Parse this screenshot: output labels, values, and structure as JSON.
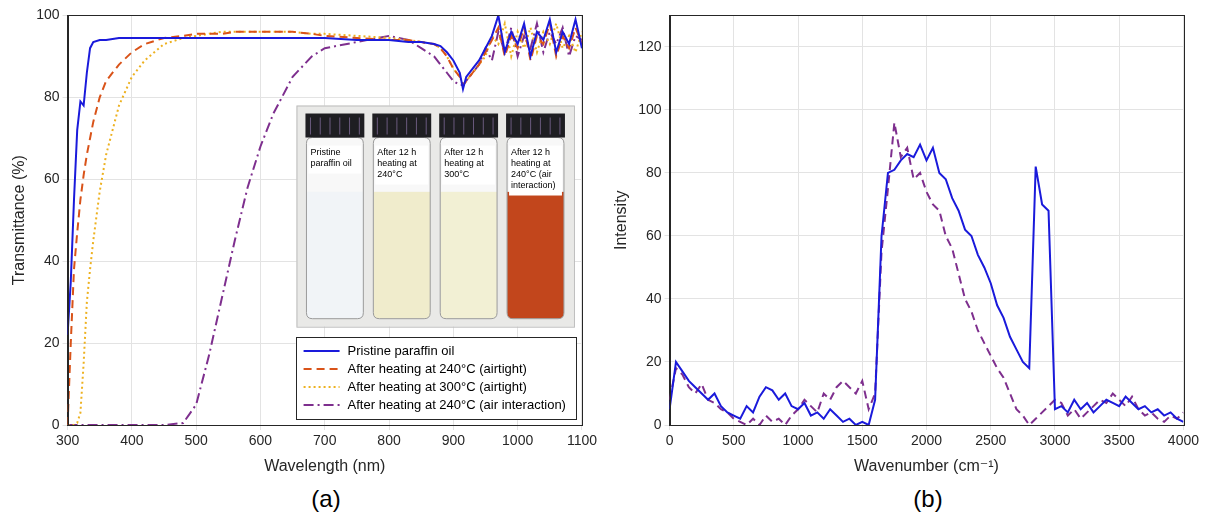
{
  "chart_data": [
    {
      "type": "line",
      "label": "(a)",
      "x_label": "Wavelength (nm)",
      "y_label": "Transmittance (%)",
      "xlim": [
        300,
        1100
      ],
      "xticks": [
        300,
        400,
        500,
        600,
        700,
        800,
        900,
        1000,
        1100
      ],
      "ylim": [
        0,
        100
      ],
      "yticks": [
        0,
        20,
        40,
        60,
        80,
        100
      ],
      "grid": true,
      "legend": "lower right",
      "annotations": [
        "Pristine paraffin oil",
        "After 12 h heating at 240°C",
        "After 12 h heating at 300°C",
        "After 12 h heating at 240°C (air interaction)"
      ],
      "x": [
        300,
        305,
        310,
        315,
        320,
        325,
        330,
        335,
        340,
        350,
        360,
        380,
        400,
        420,
        450,
        480,
        500,
        520,
        540,
        560,
        580,
        600,
        620,
        650,
        680,
        700,
        750,
        800,
        830,
        850,
        870,
        880,
        890,
        900,
        910,
        915,
        920,
        930,
        940,
        950,
        960,
        970,
        980,
        990,
        1000,
        1010,
        1020,
        1030,
        1040,
        1050,
        1060,
        1070,
        1080,
        1090,
        1100
      ],
      "series": [
        {
          "name": "Pristine paraffin oil",
          "color": "#1a1adb",
          "line_style": "solid",
          "values": [
            22,
            35,
            55,
            72,
            79,
            78,
            86,
            92,
            93.5,
            94,
            94,
            94.5,
            94.5,
            94.5,
            94.5,
            94.5,
            94.5,
            94.5,
            94.5,
            94.5,
            94.5,
            94.5,
            94.5,
            94.5,
            94.5,
            94.5,
            94,
            94,
            93.5,
            93.5,
            93,
            92.5,
            91,
            89,
            86,
            82,
            85,
            87,
            89,
            92,
            95,
            100,
            91,
            96,
            93,
            98,
            90,
            96,
            94,
            99,
            91,
            96,
            93,
            99,
            92
          ]
        },
        {
          "name": "After heating at 240°C (airtight)",
          "color": "#d95319",
          "line_style": "dashed",
          "values": [
            0,
            20,
            38,
            47,
            55,
            61,
            66,
            70,
            74,
            80,
            84,
            88,
            91,
            93,
            94.5,
            95,
            95.5,
            95.5,
            95.5,
            96,
            96,
            96,
            96,
            96,
            95.5,
            95,
            94.5,
            94,
            94,
            93.5,
            93,
            92,
            90,
            87,
            85,
            83,
            84,
            86,
            88,
            91,
            94,
            97,
            90,
            95,
            92,
            97,
            89,
            95,
            93,
            98,
            90,
            95,
            92,
            97,
            93
          ]
        },
        {
          "name": "After heating at 300°C (airtight)",
          "color": "#edb120",
          "line_style": "dotted",
          "values": [
            0,
            0,
            0,
            0.5,
            3,
            15,
            30,
            38,
            45,
            57,
            66,
            78,
            85,
            89,
            93,
            94.5,
            95,
            95.5,
            96,
            96,
            96,
            96,
            96,
            96,
            95.5,
            95.5,
            95,
            94.5,
            94,
            93.5,
            93,
            92,
            90,
            87,
            85,
            83,
            84,
            86,
            88,
            90,
            95,
            93,
            98,
            90,
            96,
            92,
            97,
            91,
            96,
            93,
            98,
            92,
            95,
            91,
            96
          ]
        },
        {
          "name": "After heating at 240°C (air interaction)",
          "color": "#7e2f8e",
          "line_style": "dashdot",
          "values": [
            0,
            0,
            0,
            0,
            0,
            0,
            0,
            0,
            0,
            0,
            0,
            0,
            0,
            0,
            0,
            0.5,
            5,
            17,
            31,
            45,
            58,
            68,
            76,
            85,
            90,
            92,
            93.5,
            95,
            94,
            92,
            90,
            88,
            86,
            84,
            83,
            83,
            84,
            86,
            88,
            92,
            89,
            96,
            91,
            97,
            90,
            95,
            92,
            98,
            91,
            96,
            93,
            97,
            90,
            95,
            94
          ]
        }
      ]
    },
    {
      "type": "line",
      "label": "(b)",
      "x_label": "Wavenumber (cm⁻¹)",
      "y_label": "Intensity",
      "xlim": [
        0,
        4000
      ],
      "xticks": [
        0,
        500,
        1000,
        1500,
        2000,
        2500,
        3000,
        3500,
        4000
      ],
      "ylim": [
        0,
        130
      ],
      "yticks": [
        0,
        20,
        40,
        60,
        80,
        100,
        120
      ],
      "grid": true,
      "x": [
        0,
        50,
        100,
        150,
        200,
        250,
        300,
        350,
        400,
        450,
        500,
        550,
        600,
        650,
        700,
        750,
        800,
        850,
        900,
        950,
        1000,
        1050,
        1100,
        1150,
        1200,
        1250,
        1300,
        1350,
        1400,
        1450,
        1500,
        1550,
        1600,
        1650,
        1700,
        1750,
        1800,
        1850,
        1900,
        1950,
        2000,
        2050,
        2100,
        2150,
        2200,
        2250,
        2300,
        2350,
        2400,
        2450,
        2500,
        2550,
        2600,
        2650,
        2700,
        2750,
        2800,
        2850,
        2900,
        2950,
        3000,
        3050,
        3100,
        3150,
        3200,
        3250,
        3300,
        3350,
        3400,
        3450,
        3500,
        3550,
        3600,
        3650,
        3700,
        3750,
        3800,
        3850,
        3900,
        3950,
        4000
      ],
      "series": [
        {
          "color": "#1a1adb",
          "line_style": "solid",
          "values": [
            5,
            20,
            17,
            14,
            12,
            10,
            8,
            10,
            6,
            4,
            3,
            2,
            6,
            4,
            9,
            12,
            11,
            8,
            10,
            6,
            5,
            7,
            3,
            4,
            2,
            5,
            3,
            1,
            2,
            0,
            1,
            0,
            8,
            60,
            80,
            81,
            84,
            86,
            85,
            89,
            84,
            88,
            80,
            78,
            72,
            68,
            62,
            60,
            54,
            50,
            45,
            38,
            34,
            28,
            24,
            20,
            18,
            82,
            70,
            68,
            5,
            6,
            4,
            8,
            5,
            7,
            4,
            6,
            8,
            7,
            6,
            9,
            7,
            5,
            6,
            4,
            5,
            3,
            4,
            2,
            1
          ]
        },
        {
          "color": "#7e2f8e",
          "line_style": "dashed",
          "values": [
            8,
            18,
            16,
            12,
            10,
            13,
            8,
            7,
            5,
            4,
            2,
            1,
            0,
            2,
            0,
            3,
            1,
            2,
            0,
            3,
            5,
            8,
            6,
            4,
            10,
            8,
            12,
            14,
            12,
            10,
            14,
            5,
            10,
            55,
            75,
            96,
            85,
            88,
            78,
            80,
            74,
            70,
            68,
            60,
            56,
            48,
            40,
            36,
            30,
            26,
            22,
            18,
            15,
            10,
            5,
            3,
            0,
            2,
            4,
            6,
            8,
            7,
            3,
            5,
            2,
            4,
            6,
            8,
            7,
            10,
            8,
            6,
            9,
            5,
            3,
            4,
            2,
            1,
            3,
            2,
            4
          ]
        }
      ]
    }
  ]
}
